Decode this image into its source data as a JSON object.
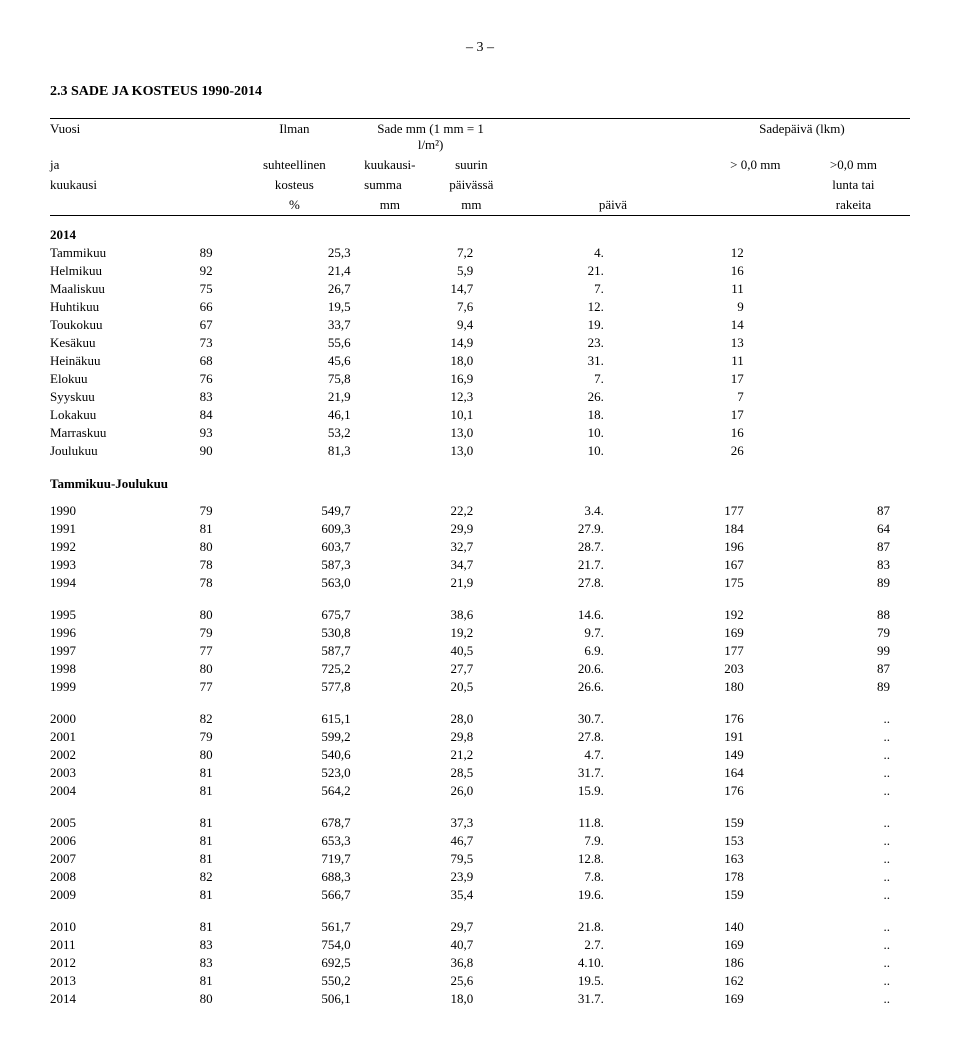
{
  "page_number_label": "– 3 –",
  "section_title": "2.3        SADE JA KOSTEUS 1990-2014",
  "header": {
    "r1": {
      "c1": "Vuosi",
      "c2": "Ilman",
      "span34": "Sade mm (1 mm = 1 l/m²)",
      "span67": "Sadepäivä (lkm)"
    },
    "r2": {
      "c1": "ja",
      "c2": "suhteellinen",
      "c3": "kuukausi-",
      "c4": "suurin",
      "c6": "> 0,0 mm",
      "c7": ">0,0 mm"
    },
    "r3": {
      "c1": "kuukausi",
      "c2": "kosteus",
      "c3": "summa",
      "c4": "päivässä",
      "c7": "lunta tai"
    },
    "r4": {
      "c2": "%",
      "c3": "mm",
      "c4": "mm",
      "c5": "päivä",
      "c7": "rakeita"
    }
  },
  "year_label_2014": "2014",
  "months": [
    {
      "name": "Tammikuu",
      "hum": "89",
      "sum": "25,3",
      "max": "7,2",
      "day": "4.",
      "d1": "12",
      "d2": ""
    },
    {
      "name": "Helmikuu",
      "hum": "92",
      "sum": "21,4",
      "max": "5,9",
      "day": "21.",
      "d1": "16",
      "d2": ""
    },
    {
      "name": "Maaliskuu",
      "hum": "75",
      "sum": "26,7",
      "max": "14,7",
      "day": "7.",
      "d1": "11",
      "d2": ""
    },
    {
      "name": "Huhtikuu",
      "hum": "66",
      "sum": "19,5",
      "max": "7,6",
      "day": "12.",
      "d1": "9",
      "d2": ""
    },
    {
      "name": "Toukokuu",
      "hum": "67",
      "sum": "33,7",
      "max": "9,4",
      "day": "19.",
      "d1": "14",
      "d2": ""
    },
    {
      "name": "Kesäkuu",
      "hum": "73",
      "sum": "55,6",
      "max": "14,9",
      "day": "23.",
      "d1": "13",
      "d2": ""
    },
    {
      "name": "Heinäkuu",
      "hum": "68",
      "sum": "45,6",
      "max": "18,0",
      "day": "31.",
      "d1": "11",
      "d2": ""
    },
    {
      "name": "Elokuu",
      "hum": "76",
      "sum": "75,8",
      "max": "16,9",
      "day": "7.",
      "d1": "17",
      "d2": ""
    },
    {
      "name": "Syyskuu",
      "hum": "83",
      "sum": "21,9",
      "max": "12,3",
      "day": "26.",
      "d1": "7",
      "d2": ""
    },
    {
      "name": "Lokakuu",
      "hum": "84",
      "sum": "46,1",
      "max": "10,1",
      "day": "18.",
      "d1": "17",
      "d2": ""
    },
    {
      "name": "Marraskuu",
      "hum": "93",
      "sum": "53,2",
      "max": "13,0",
      "day": "10.",
      "d1": "16",
      "d2": ""
    },
    {
      "name": "Joulukuu",
      "hum": "90",
      "sum": "81,3",
      "max": "13,0",
      "day": "10.",
      "d1": "26",
      "d2": ""
    }
  ],
  "annual_heading": "Tammikuu-Joulukuu",
  "groups": [
    {
      "rows": [
        {
          "y": "1990",
          "hum": "79",
          "sum": "549,7",
          "max": "22,2",
          "day": "3.4.",
          "d1": "177",
          "d2": "87"
        },
        {
          "y": "1991",
          "hum": "81",
          "sum": "609,3",
          "max": "29,9",
          "day": "27.9.",
          "d1": "184",
          "d2": "64"
        },
        {
          "y": "1992",
          "hum": "80",
          "sum": "603,7",
          "max": "32,7",
          "day": "28.7.",
          "d1": "196",
          "d2": "87"
        },
        {
          "y": "1993",
          "hum": "78",
          "sum": "587,3",
          "max": "34,7",
          "day": "21.7.",
          "d1": "167",
          "d2": "83"
        },
        {
          "y": "1994",
          "hum": "78",
          "sum": "563,0",
          "max": "21,9",
          "day": "27.8.",
          "d1": "175",
          "d2": "89"
        }
      ]
    },
    {
      "rows": [
        {
          "y": "1995",
          "hum": "80",
          "sum": "675,7",
          "max": "38,6",
          "day": "14.6.",
          "d1": "192",
          "d2": "88"
        },
        {
          "y": "1996",
          "hum": "79",
          "sum": "530,8",
          "max": "19,2",
          "day": "9.7.",
          "d1": "169",
          "d2": "79"
        },
        {
          "y": "1997",
          "hum": "77",
          "sum": "587,7",
          "max": "40,5",
          "day": "6.9.",
          "d1": "177",
          "d2": "99"
        },
        {
          "y": "1998",
          "hum": "80",
          "sum": "725,2",
          "max": "27,7",
          "day": "20.6.",
          "d1": "203",
          "d2": "87"
        },
        {
          "y": "1999",
          "hum": "77",
          "sum": "577,8",
          "max": "20,5",
          "day": "26.6.",
          "d1": "180",
          "d2": "89"
        }
      ]
    },
    {
      "rows": [
        {
          "y": "2000",
          "hum": "82",
          "sum": "615,1",
          "max": "28,0",
          "day": "30.7.",
          "d1": "176",
          "d2": ".."
        },
        {
          "y": "2001",
          "hum": "79",
          "sum": "599,2",
          "max": "29,8",
          "day": "27.8.",
          "d1": "191",
          "d2": ".."
        },
        {
          "y": "2002",
          "hum": "80",
          "sum": "540,6",
          "max": "21,2",
          "day": "4.7.",
          "d1": "149",
          "d2": ".."
        },
        {
          "y": "2003",
          "hum": "81",
          "sum": "523,0",
          "max": "28,5",
          "day": "31.7.",
          "d1": "164",
          "d2": ".."
        },
        {
          "y": "2004",
          "hum": "81",
          "sum": "564,2",
          "max": "26,0",
          "day": "15.9.",
          "d1": "176",
          "d2": ".."
        }
      ]
    },
    {
      "rows": [
        {
          "y": "2005",
          "hum": "81",
          "sum": "678,7",
          "max": "37,3",
          "day": "11.8.",
          "d1": "159",
          "d2": ".."
        },
        {
          "y": "2006",
          "hum": "81",
          "sum": "653,3",
          "max": "46,7",
          "day": "7.9.",
          "d1": "153",
          "d2": ".."
        },
        {
          "y": "2007",
          "hum": "81",
          "sum": "719,7",
          "max": "79,5",
          "day": "12.8.",
          "d1": "163",
          "d2": ".."
        },
        {
          "y": "2008",
          "hum": "82",
          "sum": "688,3",
          "max": "23,9",
          "day": "7.8.",
          "d1": "178",
          "d2": ".."
        },
        {
          "y": "2009",
          "hum": "81",
          "sum": "566,7",
          "max": "35,4",
          "day": "19.6.",
          "d1": "159",
          "d2": ".."
        }
      ]
    },
    {
      "rows": [
        {
          "y": "2010",
          "hum": "81",
          "sum": "561,7",
          "max": "29,7",
          "day": "21.8.",
          "d1": "140",
          "d2": ".."
        },
        {
          "y": "2011",
          "hum": "83",
          "sum": "754,0",
          "max": "40,7",
          "day": "2.7.",
          "d1": "169",
          "d2": ".."
        },
        {
          "y": "2012",
          "hum": "83",
          "sum": "692,5",
          "max": "36,8",
          "day": "4.10.",
          "d1": "186",
          "d2": ".."
        },
        {
          "y": "2013",
          "hum": "81",
          "sum": "550,2",
          "max": "25,6",
          "day": "19.5.",
          "d1": "162",
          "d2": ".."
        },
        {
          "y": "2014",
          "hum": "80",
          "sum": "506,1",
          "max": "18,0",
          "day": "31.7.",
          "d1": "169",
          "d2": ".."
        }
      ]
    }
  ]
}
